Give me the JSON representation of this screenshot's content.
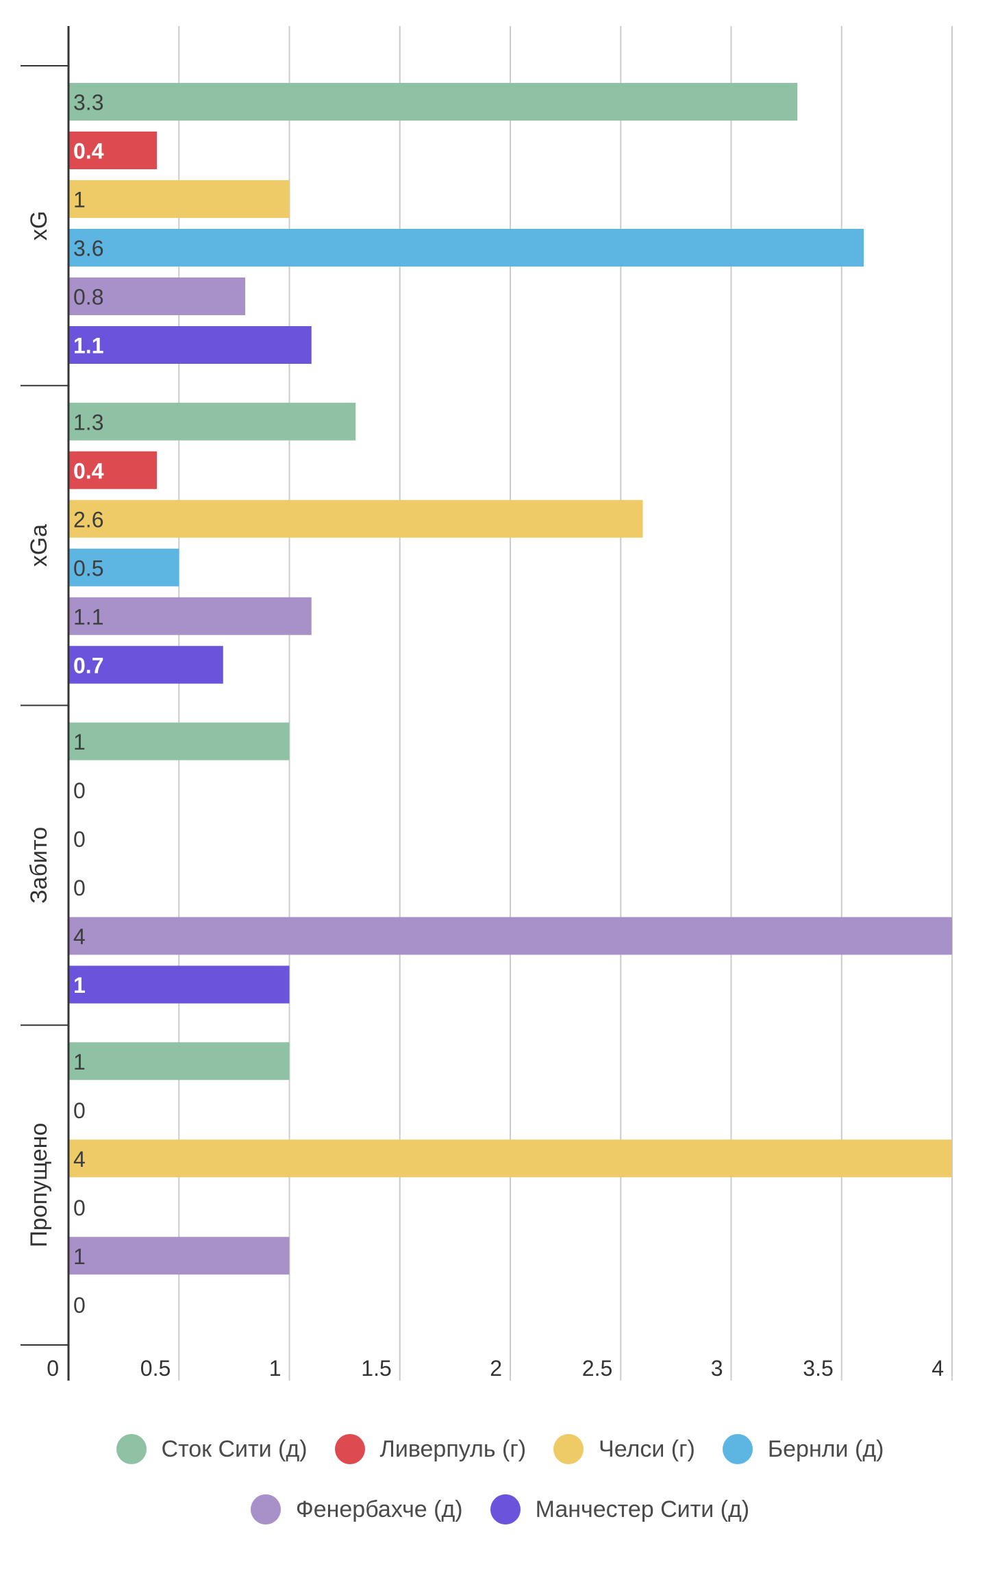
{
  "chart_data": {
    "type": "bar",
    "orientation": "horizontal",
    "categories": [
      "xG",
      "xGa",
      "Забито",
      "Пропущено"
    ],
    "series": [
      {
        "name": "Сток Сити (д)",
        "color": "#8fc2a5",
        "values": [
          3.3,
          1.3,
          1,
          1
        ]
      },
      {
        "name": "Ливерпуль (г)",
        "color": "#dd4b50",
        "values": [
          0.4,
          0.4,
          0,
          0
        ]
      },
      {
        "name": "Челси (г)",
        "color": "#eecb66",
        "values": [
          1,
          2.6,
          0,
          4
        ]
      },
      {
        "name": "Бернли (д)",
        "color": "#5db5e2",
        "values": [
          3.6,
          0.5,
          0,
          0
        ]
      },
      {
        "name": "Фенербахче (д)",
        "color": "#a891c8",
        "values": [
          0.8,
          1.1,
          4,
          1
        ]
      },
      {
        "name": "Манчестер Сити (д)",
        "color": "#6b53dc",
        "values": [
          1.1,
          0.7,
          1,
          0
        ]
      }
    ],
    "value_labels": [
      [
        "3.3",
        "1.3",
        "1",
        "1"
      ],
      [
        "0.4",
        "0.4",
        "0",
        "0"
      ],
      [
        "1",
        "2.6",
        "0",
        "4"
      ],
      [
        "3.6",
        "0.5",
        "0",
        "0"
      ],
      [
        "0.8",
        "1.1",
        "4",
        "1"
      ],
      [
        "1.1",
        "0.7",
        "1",
        "0"
      ]
    ],
    "label_colors": [
      "#3d3d3d",
      "#ffffff",
      "#3d3d3d",
      "#3d3d3d",
      "#3d3d3d",
      "#ffffff"
    ],
    "xlim": [
      0,
      4
    ],
    "xticks": [
      "0",
      "0.5",
      "1",
      "1.5",
      "2",
      "2.5",
      "3",
      "3.5",
      "4"
    ],
    "grid": true,
    "legend_position": "bottom"
  }
}
